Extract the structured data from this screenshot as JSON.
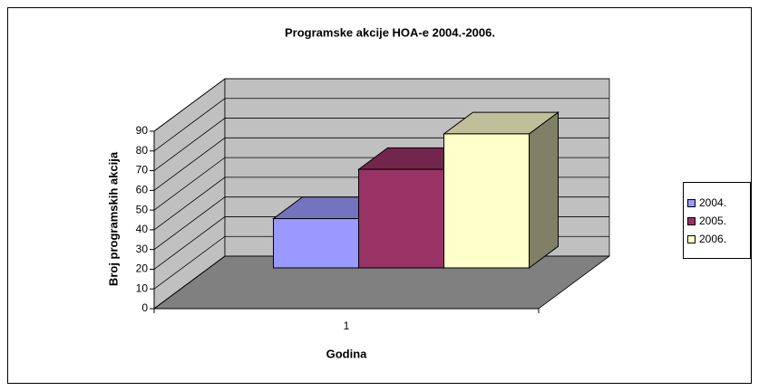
{
  "chart_data": {
    "type": "bar3d",
    "title": "Programske akcije HOA-e 2004.-2006.",
    "xlabel": "Godina",
    "ylabel": "Broj programskih akcija",
    "categories": [
      "1"
    ],
    "series": [
      {
        "name": "2004.",
        "color": "#9999ff",
        "values": [
          25
        ]
      },
      {
        "name": "2005.",
        "color": "#993366",
        "values": [
          50
        ]
      },
      {
        "name": "2006.",
        "color": "#ffffcc",
        "values": [
          68
        ]
      }
    ],
    "ylim": [
      0,
      90
    ],
    "yticks": [
      0,
      10,
      20,
      30,
      40,
      50,
      60,
      70,
      80,
      90
    ],
    "grid": true,
    "legend": "right"
  }
}
